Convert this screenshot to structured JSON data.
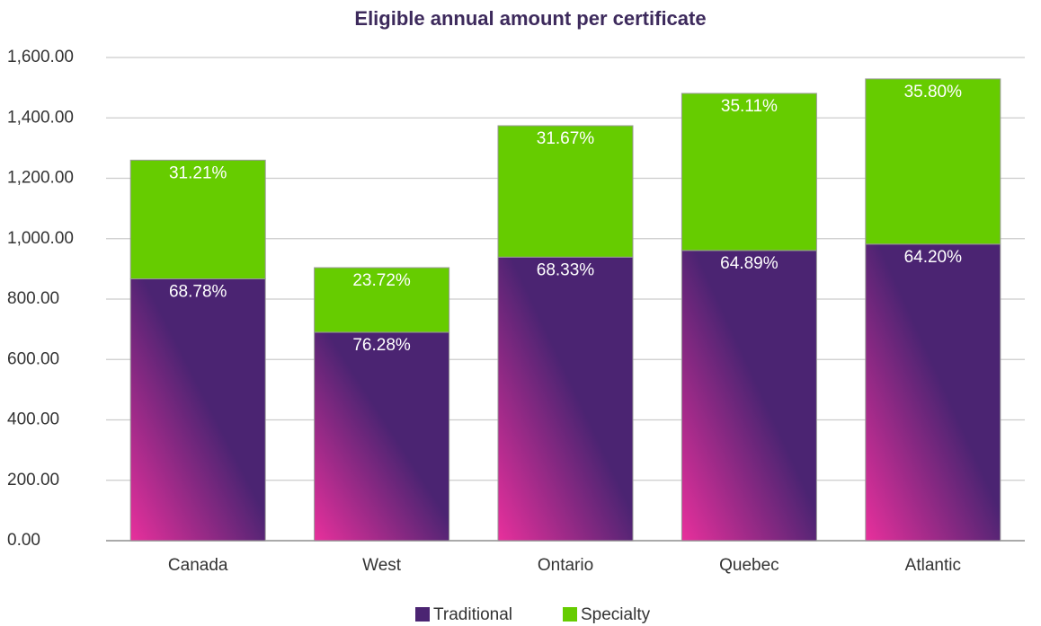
{
  "chart_data": {
    "type": "stacked_bar",
    "title": "Eligible annual amount per certificate",
    "categories": [
      "Canada",
      "West",
      "Ontario",
      "Quebec",
      "Atlantic"
    ],
    "series": [
      {
        "name": "Traditional",
        "color": "#4b2472",
        "values": [
          867,
          690,
          939,
          961,
          982
        ],
        "data_labels": [
          "68.78%",
          "76.28%",
          "68.33%",
          "64.89%",
          "64.20%"
        ]
      },
      {
        "name": "Specialty",
        "color": "#66cc00",
        "values": [
          393,
          214,
          435,
          520,
          547
        ],
        "data_labels": [
          "31.21%",
          "23.72%",
          "31.67%",
          "35.11%",
          "35.80%"
        ]
      }
    ],
    "ylim": [
      0,
      1600
    ],
    "yticks": [
      {
        "value": 0,
        "label": "0.00"
      },
      {
        "value": 200,
        "label": "200.00"
      },
      {
        "value": 400,
        "label": "400.00"
      },
      {
        "value": 600,
        "label": "600.00"
      },
      {
        "value": 800,
        "label": "800.00"
      },
      {
        "value": 1000,
        "label": "1,000.00"
      },
      {
        "value": 1200,
        "label": "1,200.00"
      },
      {
        "value": 1400,
        "label": "1,400.00"
      },
      {
        "value": 1600,
        "label": "1,600.00"
      }
    ],
    "grid": true,
    "legend": "bottom"
  }
}
